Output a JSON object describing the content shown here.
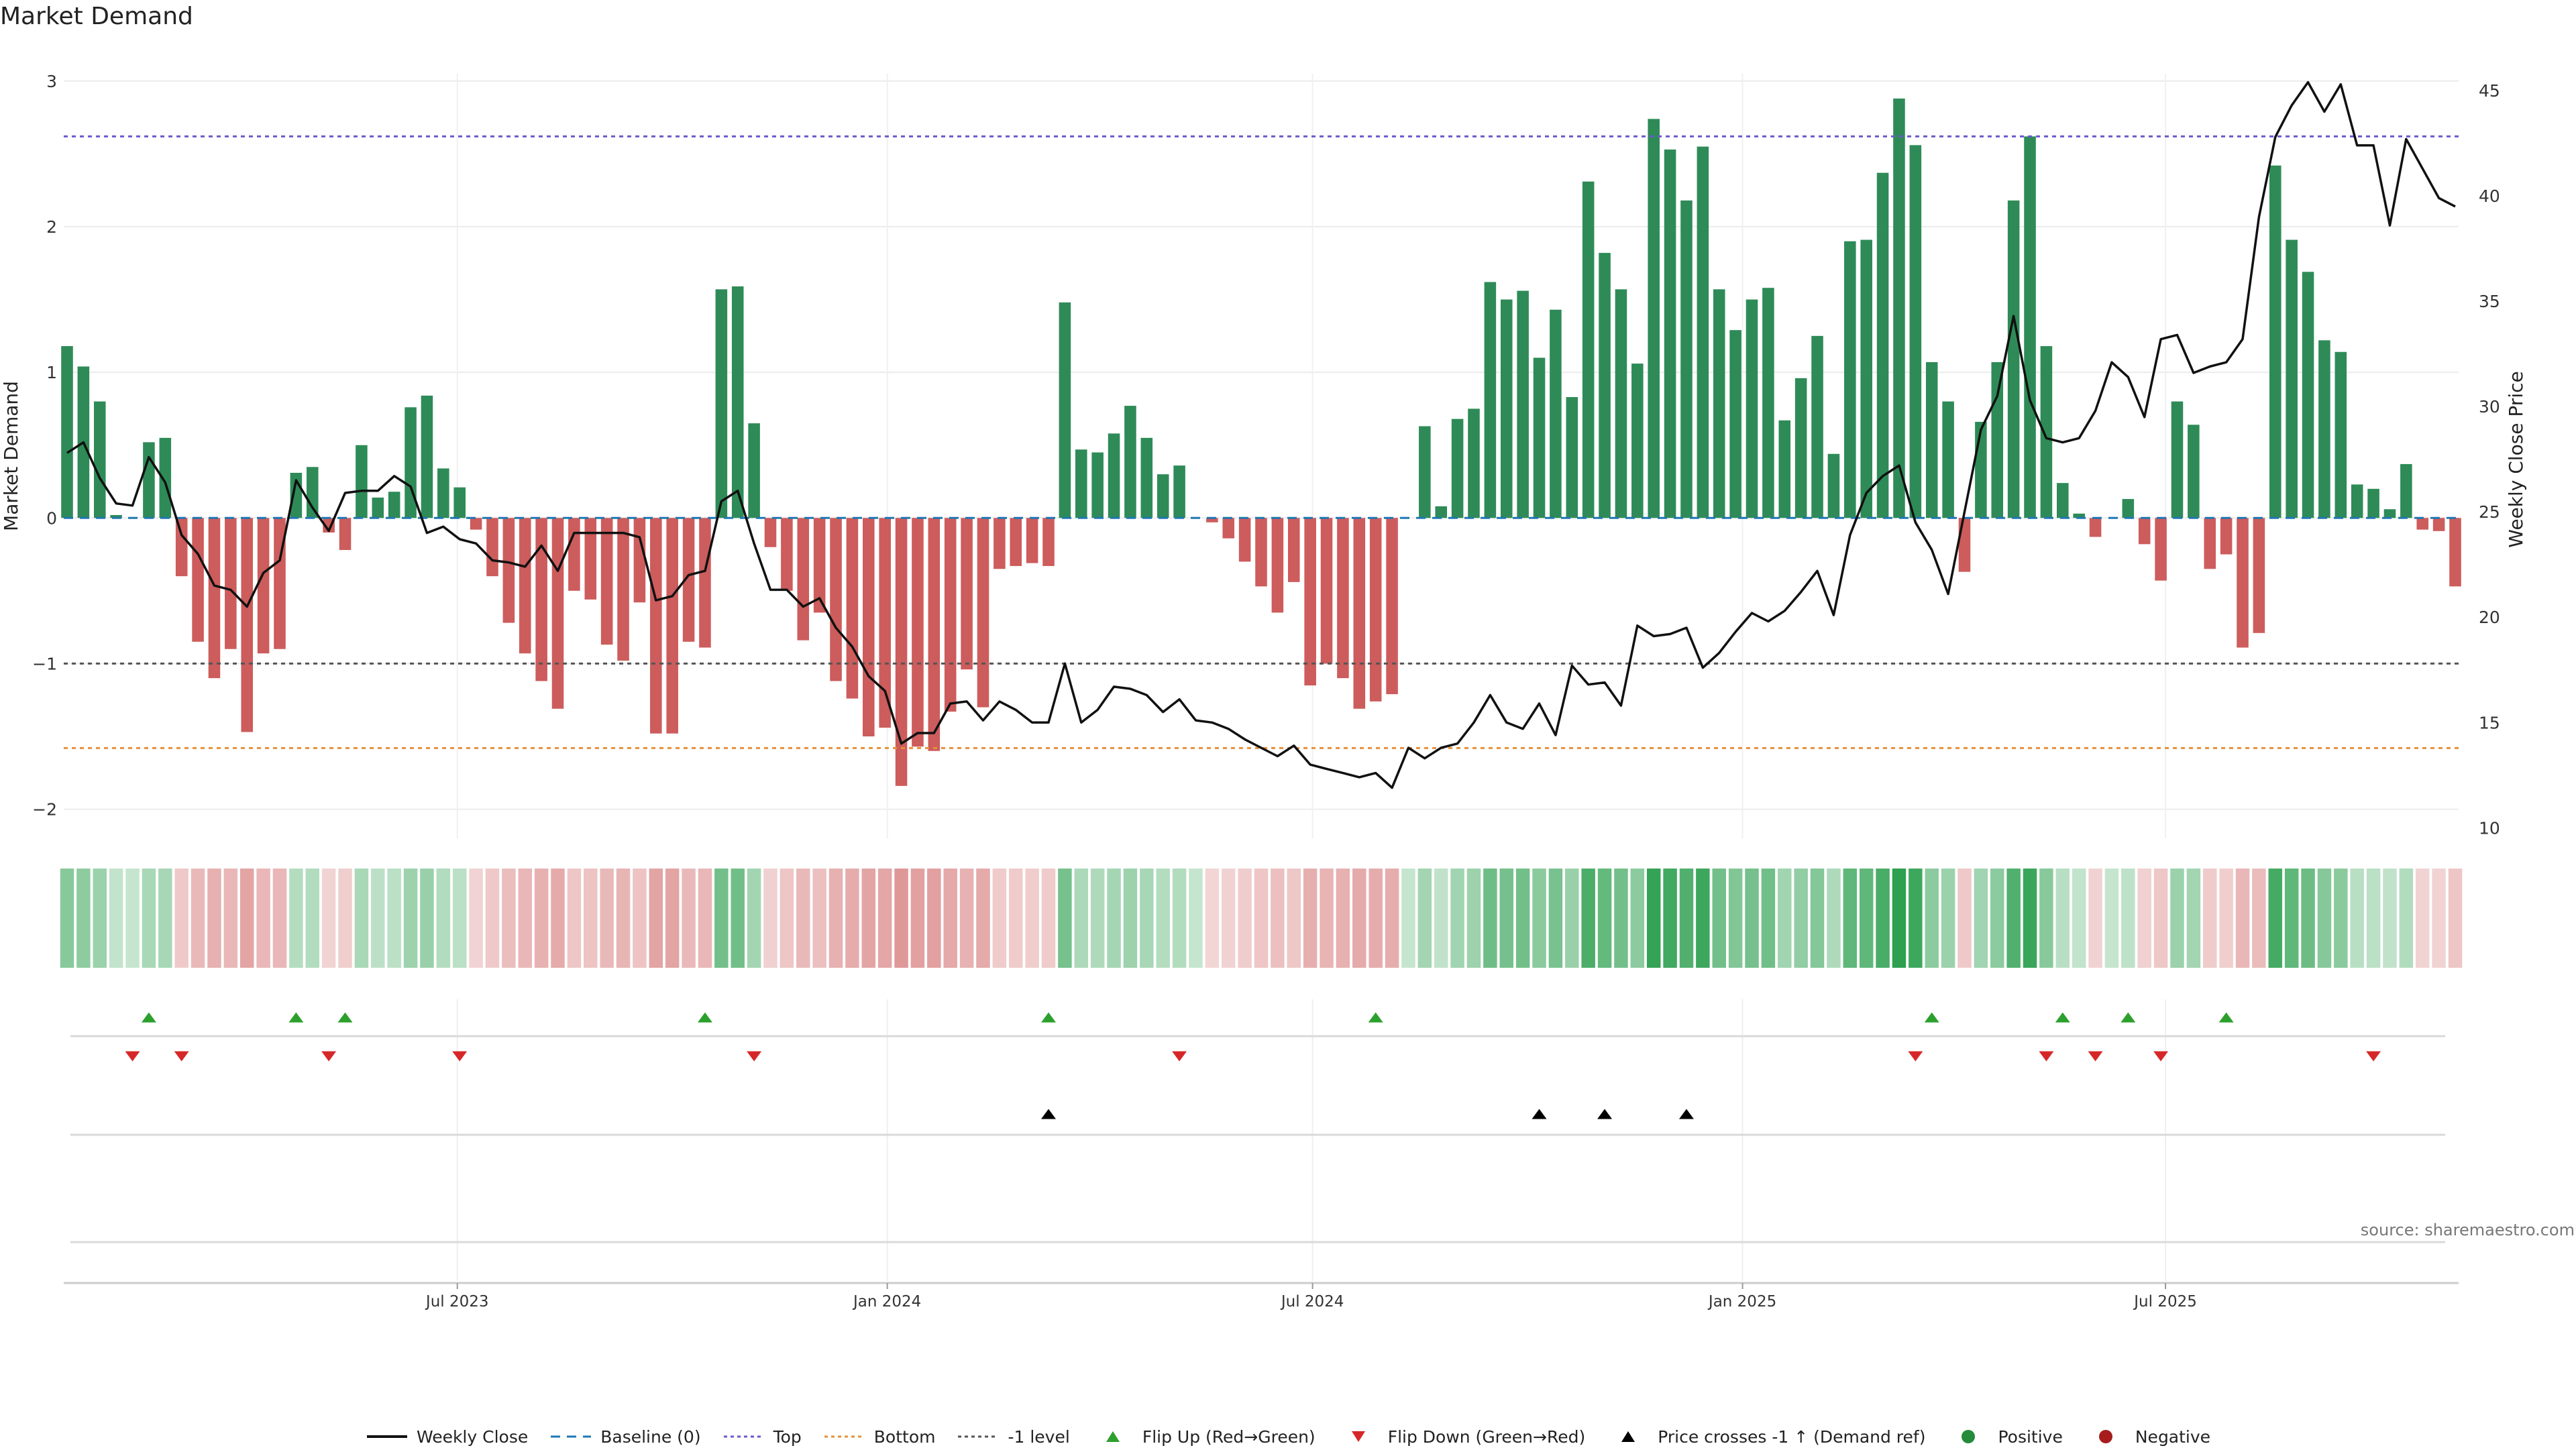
{
  "title": "Market Demand",
  "source": "source: sharemaestro.com",
  "colors": {
    "positive": "#2e8b57",
    "negative": "#cd5c5c",
    "close": "#111111",
    "top": "#6a5acd",
    "bottom": "#e69138",
    "minus1": "#555555",
    "baseline": "#1f77b4",
    "flip_up": "#2ca02c",
    "flip_down": "#d62728",
    "cross": "#000000"
  },
  "chart_data": {
    "type": "bar",
    "title": "Market Demand",
    "ylabel": "Market Demand",
    "y2label": "Weekly Close Price",
    "ylim": [
      -2.2,
      3.05
    ],
    "y2lim": [
      9.5,
      45.8
    ],
    "yticks": [
      -2,
      -1,
      0,
      1,
      2,
      3
    ],
    "y2ticks": [
      10,
      15,
      20,
      25,
      30,
      35,
      40,
      45
    ],
    "x_start": "2023-01-15",
    "week_days": 7,
    "top_level": 2.62,
    "bottom_level": -1.58,
    "minus1_level": -1.0,
    "xtick_labels": [
      {
        "date": "2023-07-01",
        "label": "Jul 2023"
      },
      {
        "date": "2024-01-01",
        "label": "Jan 2024"
      },
      {
        "date": "2024-07-01",
        "label": "Jul 2024"
      },
      {
        "date": "2025-01-01",
        "label": "Jan 2025"
      },
      {
        "date": "2025-07-01",
        "label": "Jul 2025"
      }
    ],
    "demand": [
      1.18,
      1.04,
      0.8,
      0.02,
      0.0,
      0.52,
      0.55,
      -0.4,
      -0.85,
      -1.1,
      -0.9,
      -1.47,
      -0.93,
      -0.9,
      0.31,
      0.35,
      -0.1,
      -0.22,
      0.5,
      0.14,
      0.18,
      0.76,
      0.84,
      0.34,
      0.21,
      -0.08,
      -0.4,
      -0.72,
      -0.93,
      -1.12,
      -1.31,
      -0.5,
      -0.56,
      -0.87,
      -0.98,
      -0.58,
      -1.48,
      -1.48,
      -0.85,
      -0.89,
      1.57,
      1.59,
      0.65,
      -0.2,
      -0.5,
      -0.84,
      -0.65,
      -1.12,
      -1.24,
      -1.5,
      -1.44,
      -1.84,
      -1.57,
      -1.6,
      -1.33,
      -1.04,
      -1.3,
      -0.35,
      -0.33,
      -0.31,
      -0.33,
      1.48,
      0.47,
      0.45,
      0.58,
      0.77,
      0.55,
      0.3,
      0.36,
      0.0,
      -0.03,
      -0.14,
      -0.3,
      -0.47,
      -0.65,
      -0.44,
      -1.15,
      -1.0,
      -1.1,
      -1.31,
      -1.26,
      -1.21,
      0.0,
      0.63,
      0.08,
      0.68,
      0.75,
      1.62,
      1.5,
      1.56,
      1.1,
      1.43,
      0.83,
      2.31,
      1.82,
      1.57,
      1.06,
      2.74,
      2.53,
      2.18,
      2.55,
      1.57,
      1.29,
      1.5,
      1.58,
      0.67,
      0.96,
      1.25,
      0.44,
      1.9,
      1.91,
      2.37,
      2.88,
      2.56,
      1.07,
      0.8,
      -0.37,
      0.66,
      1.07,
      2.18,
      2.62,
      1.18,
      0.24,
      0.03,
      -0.13,
      0.0,
      0.13,
      -0.18,
      -0.43,
      0.8,
      0.64,
      -0.35,
      -0.25,
      -0.89,
      -0.79,
      2.42,
      1.91,
      1.69,
      1.22,
      1.14,
      0.23,
      0.2,
      0.06,
      0.37,
      -0.08,
      -0.09,
      -0.47
    ],
    "close": [
      27.8,
      28.3,
      26.6,
      25.4,
      25.3,
      27.6,
      26.4,
      23.9,
      23.0,
      21.5,
      21.3,
      20.5,
      22.1,
      22.7,
      26.5,
      25.2,
      24.1,
      25.9,
      26.0,
      26.0,
      26.7,
      26.2,
      24.0,
      24.3,
      23.7,
      23.5,
      22.7,
      22.6,
      22.4,
      23.4,
      22.2,
      24.0,
      24.0,
      24.0,
      24.0,
      23.8,
      20.8,
      21.0,
      22.0,
      22.2,
      25.5,
      26.0,
      23.5,
      21.3,
      21.3,
      20.5,
      20.9,
      19.5,
      18.6,
      17.2,
      16.5,
      14.0,
      14.5,
      14.5,
      15.9,
      16.0,
      15.1,
      16.0,
      15.6,
      15.0,
      15.0,
      17.8,
      15.0,
      15.6,
      16.7,
      16.6,
      16.3,
      15.5,
      16.1,
      15.1,
      15.0,
      14.7,
      14.2,
      13.8,
      13.4,
      13.9,
      13.0,
      12.8,
      12.6,
      12.4,
      12.6,
      11.9,
      13.8,
      13.3,
      13.8,
      14.0,
      15.0,
      16.3,
      15.0,
      14.7,
      15.9,
      14.4,
      17.7,
      16.8,
      16.9,
      15.8,
      19.6,
      19.1,
      19.2,
      19.5,
      17.6,
      18.3,
      19.3,
      20.2,
      19.8,
      20.3,
      21.2,
      22.2,
      20.1,
      23.9,
      25.9,
      26.7,
      27.2,
      24.5,
      23.2,
      21.1,
      25.0,
      28.9,
      30.5,
      34.3,
      30.3,
      28.5,
      28.3,
      28.5,
      29.8,
      32.1,
      31.4,
      29.5,
      33.2,
      33.4,
      31.6,
      31.9,
      32.1,
      33.2,
      39.0,
      42.8,
      44.3,
      45.4,
      44.0,
      45.3,
      42.4,
      42.4,
      38.6,
      42.7,
      41.3,
      39.9,
      39.5
    ]
  },
  "marker_rows": {
    "flip_up": [
      5,
      14,
      17,
      39,
      60,
      80,
      114,
      122,
      126,
      132
    ],
    "flip_down": [
      4,
      7,
      16,
      24,
      42,
      68,
      113,
      121,
      124,
      128,
      141
    ],
    "price_crosses": [
      60,
      90,
      94,
      99
    ]
  },
  "legend": [
    {
      "key": "close",
      "label": "Weekly Close"
    },
    {
      "key": "baseline",
      "label": "Baseline (0)"
    },
    {
      "key": "top",
      "label": "Top"
    },
    {
      "key": "bottom",
      "label": "Bottom"
    },
    {
      "key": "minus1",
      "label": "-1 level"
    },
    {
      "key": "flip_up",
      "label": "Flip Up (Red→Green)"
    },
    {
      "key": "flip_down",
      "label": "Flip Down (Green→Red)"
    },
    {
      "key": "cross",
      "label": "Price crosses -1 ↑ (Demand ref)"
    },
    {
      "key": "positive",
      "label": "Positive"
    },
    {
      "key": "negative",
      "label": "Negative"
    }
  ]
}
